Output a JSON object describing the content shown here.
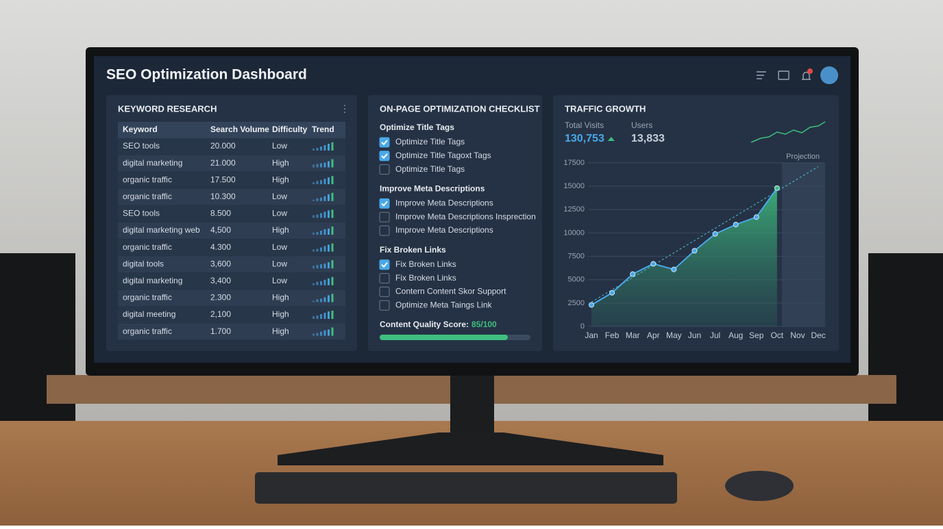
{
  "header": {
    "title": "SEO Optimization Dashboard"
  },
  "keyword_research": {
    "title": "KEYWORD RESEARCH",
    "columns": [
      "Keyword",
      "Search Volume",
      "Difficulty",
      "Trend"
    ],
    "rows": [
      [
        "SEO tools",
        "20.000",
        "Low"
      ],
      [
        "digital marketing",
        "21.000",
        "High"
      ],
      [
        "organic traffic",
        "17.500",
        "High"
      ],
      [
        "organic traffic",
        "10.300",
        "Low"
      ],
      [
        "SEO tools",
        "8.500",
        "Low"
      ],
      [
        "digital marketing web",
        "4,500",
        "High"
      ],
      [
        "organic traffic",
        "4.300",
        "Low"
      ],
      [
        "digital tools",
        "3,600",
        "Low"
      ],
      [
        "digital marketing",
        "3,400",
        "Low"
      ],
      [
        "organic traffic",
        "2.300",
        "High"
      ],
      [
        "digital meeting",
        "2,100",
        "High"
      ],
      [
        "organic traffic",
        "1.700",
        "High"
      ]
    ]
  },
  "checklist": {
    "title": "ON-PAGE OPTIMIZATION CHECKLIST",
    "sections": [
      {
        "title": "Optimize Title Tags",
        "items": [
          {
            "label": "Optimize Title Tags",
            "checked": true
          },
          {
            "label": "Optimize Title Tagoxt Tags",
            "checked": true
          },
          {
            "label": "Optimize Title Tags",
            "checked": false
          }
        ]
      },
      {
        "title": "Improve Meta Descriptions",
        "items": [
          {
            "label": "Improve Meta Descriptions",
            "checked": true
          },
          {
            "label": "Improve Meta Descriptions Insprection",
            "checked": false
          },
          {
            "label": "Improve Meta Descriptions",
            "checked": false
          }
        ]
      },
      {
        "title": "Fix Broken Links",
        "items": [
          {
            "label": "Fix Broken Links",
            "checked": true
          },
          {
            "label": "Fix Broken Links",
            "checked": false
          },
          {
            "label": "Contern Content Skor Support",
            "checked": false
          },
          {
            "label": "Optimize Meta Taings Link",
            "checked": false
          }
        ]
      }
    ],
    "score": {
      "label": "Content Quality Score:",
      "value": 85,
      "max": 100,
      "text": "85/100"
    }
  },
  "traffic": {
    "title": "TRAFFIC GROWTH",
    "stats": [
      {
        "label": "Total Visits",
        "value": "130,753"
      },
      {
        "label": "Users",
        "value": "13,833"
      }
    ]
  },
  "chart_data": {
    "type": "line",
    "categories": [
      "Jan",
      "Feb",
      "Mar",
      "Apr",
      "May",
      "Jun",
      "Jul",
      "Aug",
      "Sep",
      "Oct",
      "Nov",
      "Dec"
    ],
    "values": [
      2300,
      3600,
      5600,
      6700,
      6100,
      8100,
      9900,
      10900,
      11700,
      14800,
      null,
      null
    ],
    "color": "#4aa8e8",
    "area_color": "#3fbf7f",
    "projection": {
      "label": "Projection",
      "values": [
        2600,
        17100
      ]
    },
    "ylim": [
      0,
      17500
    ],
    "yticks": [
      0,
      2500,
      5000,
      7500,
      10000,
      12500,
      15000,
      17500
    ],
    "grid": true
  }
}
